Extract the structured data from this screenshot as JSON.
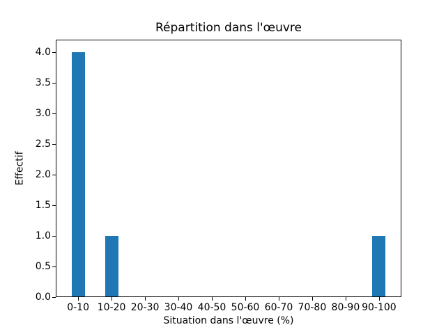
{
  "chart_data": {
    "type": "bar",
    "title": "Répartition dans l'œuvre",
    "xlabel": "Situation dans l'œuvre (%)",
    "ylabel": "Effectif",
    "categories": [
      "0-10",
      "10-20",
      "20-30",
      "30-40",
      "40-50",
      "50-60",
      "60-70",
      "70-80",
      "80-90",
      "90-100"
    ],
    "values": [
      4,
      1,
      0,
      0,
      0,
      0,
      0,
      0,
      0,
      1
    ],
    "ytick_labels": [
      "0.0",
      "0.5",
      "1.0",
      "1.5",
      "2.0",
      "2.5",
      "3.0",
      "3.5",
      "4.0"
    ],
    "yticks": [
      0.0,
      0.5,
      1.0,
      1.5,
      2.0,
      2.5,
      3.0,
      3.5,
      4.0
    ],
    "ylim": [
      0,
      4.2
    ],
    "xlim": [
      -0.67,
      9.67
    ],
    "bar_width_units": 0.4,
    "bar_color": "#1f77b4",
    "background_color": "#ffffff",
    "grid": false,
    "legend": null
  }
}
